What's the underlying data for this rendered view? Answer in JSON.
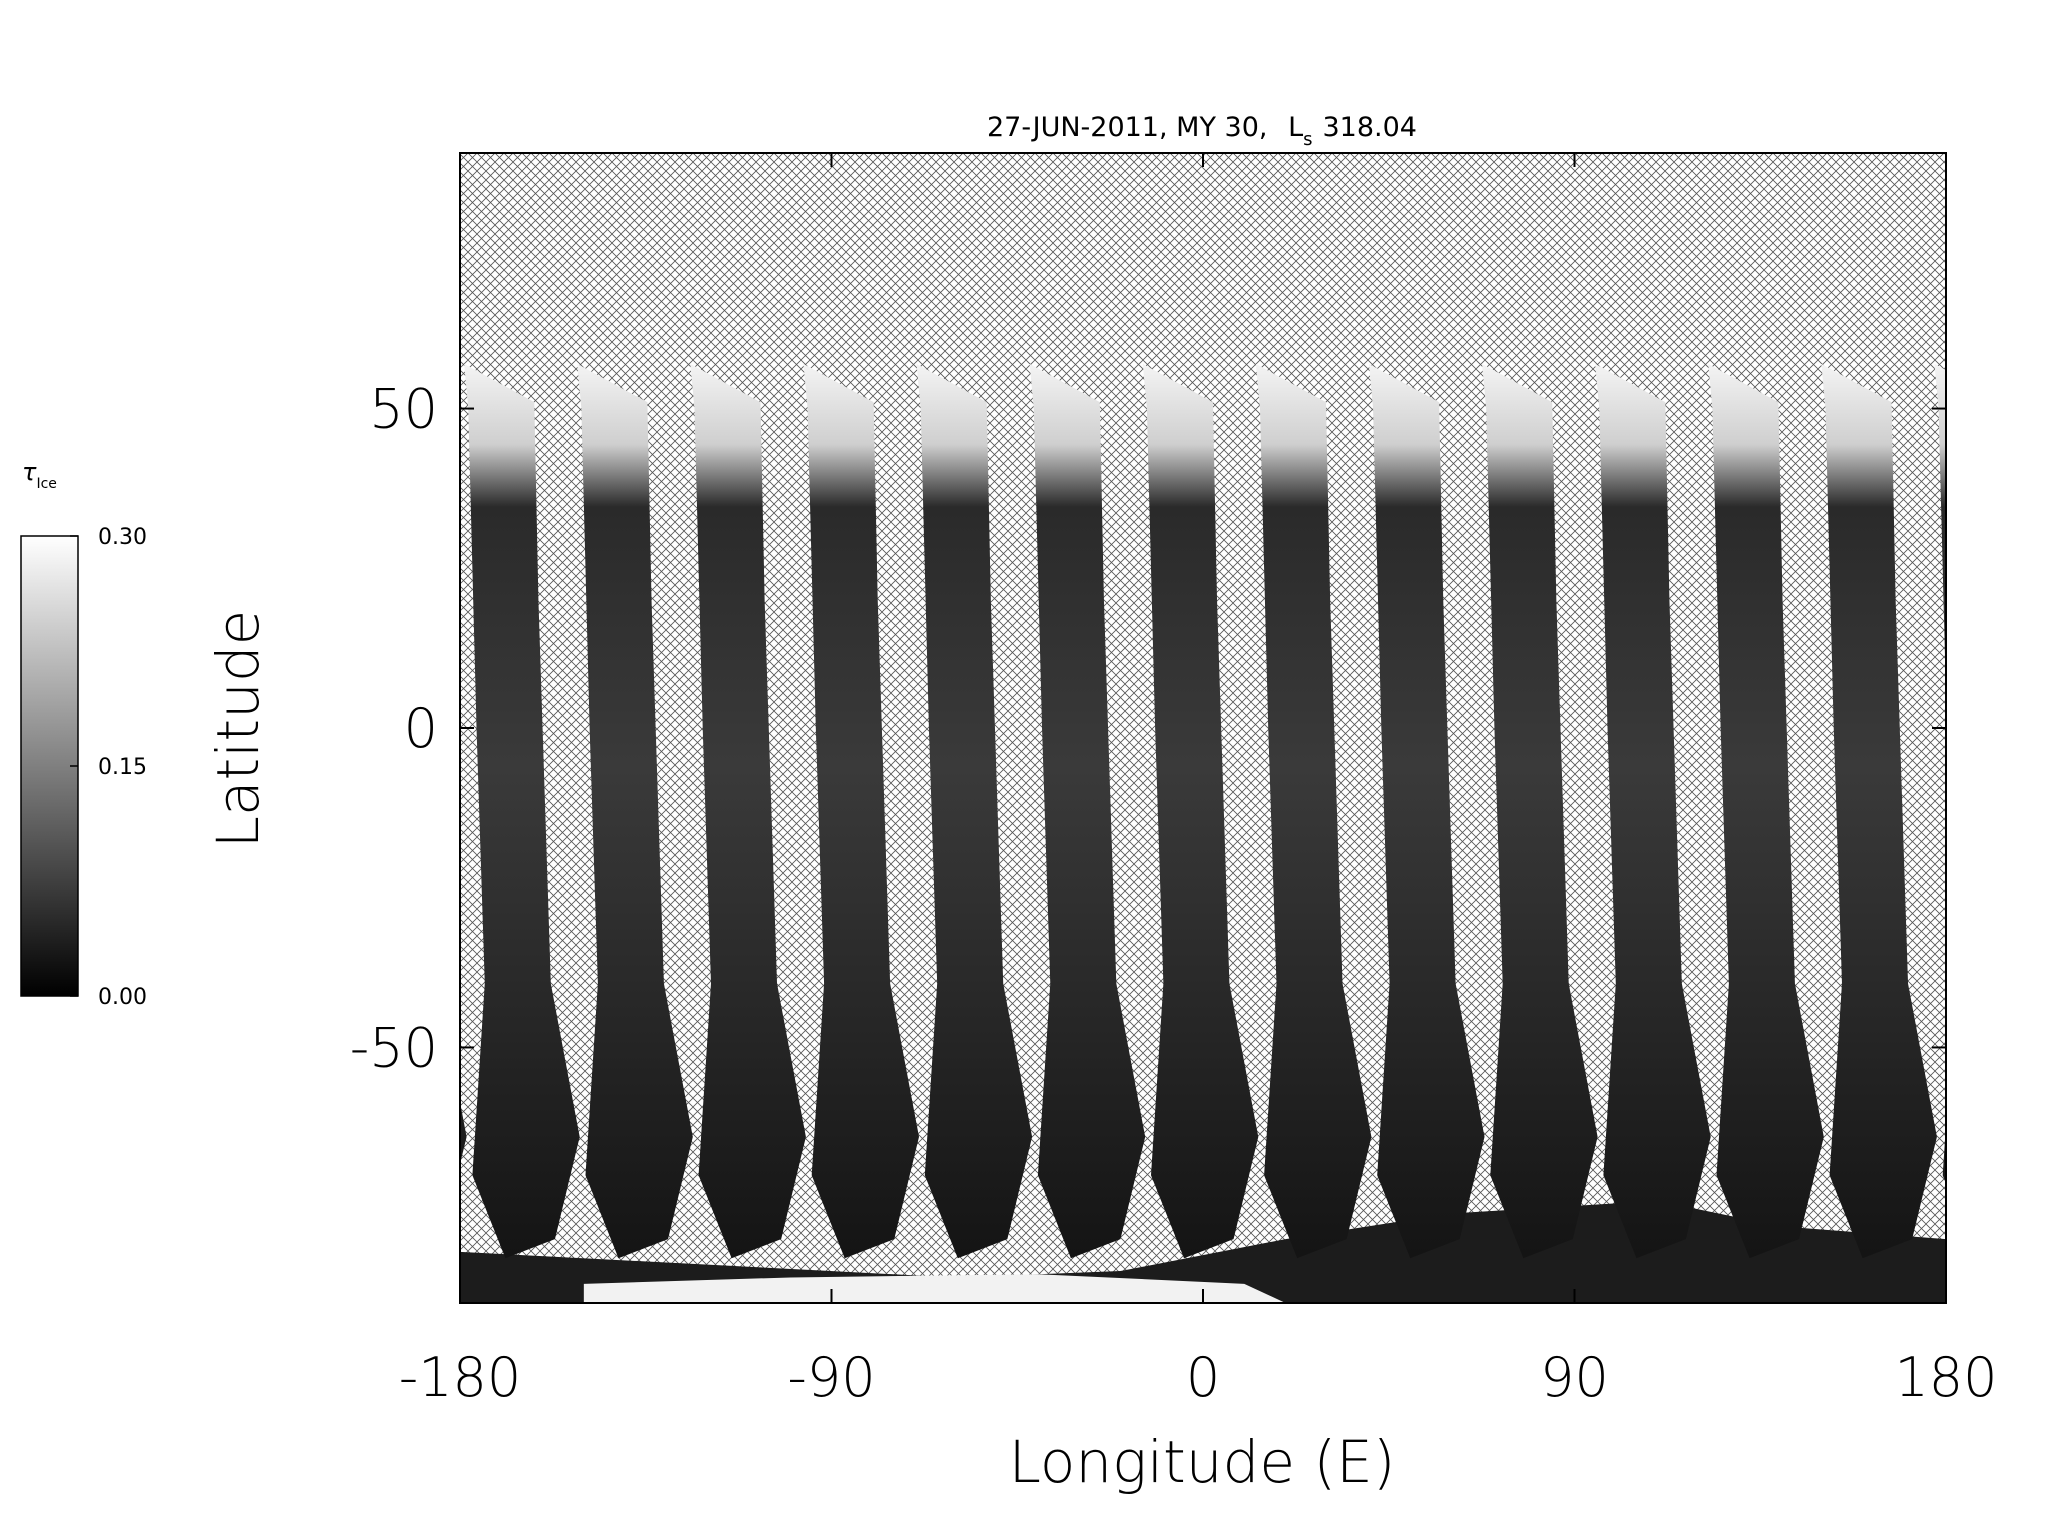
{
  "chart_data": {
    "type": "map",
    "title": [
      "27-JUN-2011, MY 30,",
      "L",
      "s",
      "318.04"
    ],
    "x_label": "Longitude (E)",
    "y_label": "Latitude",
    "xlim": [
      -180,
      180
    ],
    "xticks": [
      -180,
      -90,
      0,
      90,
      180
    ],
    "ylim": [
      -90,
      90
    ],
    "yticks": [
      -50,
      0,
      50
    ],
    "colorbar": {
      "label": [
        "τ",
        "Ice"
      ],
      "lim": [
        0,
        0.3
      ],
      "ticks": [
        {
          "value": 0,
          "label": "0.00"
        },
        {
          "value": 0.15,
          "label": "0.15"
        },
        {
          "value": 0.3,
          "label": "0.30"
        }
      ],
      "colors": [
        "#000000",
        "#ffffff"
      ]
    }
  }
}
